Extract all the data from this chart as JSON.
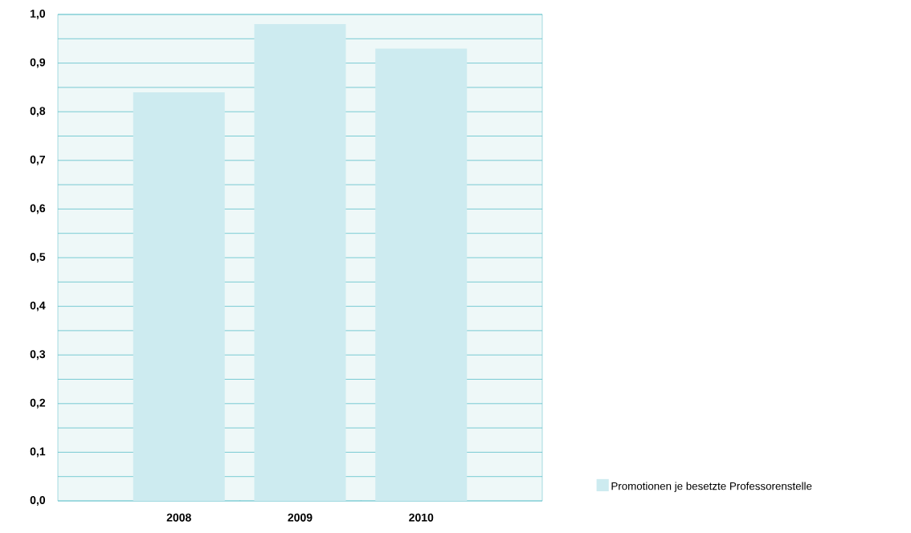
{
  "chart_data": {
    "type": "bar",
    "categories": [
      "2008",
      "2009",
      "2010"
    ],
    "series": [
      {
        "name": "Promotionen je besetzte Professorenstelle",
        "color": "#cdebf0",
        "values": [
          0.84,
          0.98,
          0.93
        ]
      }
    ],
    "ylim": [
      0,
      1.0
    ],
    "yticks": [
      {
        "value": 0,
        "label": "0,0"
      },
      {
        "value": 0.05,
        "label": null
      },
      {
        "value": 0.1,
        "label": "0,1"
      },
      {
        "value": 0.15,
        "label": null
      },
      {
        "value": 0.2,
        "label": "0,2"
      },
      {
        "value": 0.25,
        "label": null
      },
      {
        "value": 0.3,
        "label": "0,3"
      },
      {
        "value": 0.35,
        "label": null
      },
      {
        "value": 0.4,
        "label": "0,4"
      },
      {
        "value": 0.45,
        "label": null
      },
      {
        "value": 0.5,
        "label": "0,5"
      },
      {
        "value": 0.55,
        "label": null
      },
      {
        "value": 0.6,
        "label": "0,6"
      },
      {
        "value": 0.65,
        "label": null
      },
      {
        "value": 0.7,
        "label": "0,7"
      },
      {
        "value": 0.75,
        "label": null
      },
      {
        "value": 0.8,
        "label": "0,8"
      },
      {
        "value": 0.85,
        "label": null
      },
      {
        "value": 0.9,
        "label": "0,9"
      },
      {
        "value": 0.95,
        "label": null
      },
      {
        "value": 1.0,
        "label": "1,0"
      }
    ],
    "grid": "y",
    "legend": "bottom right"
  }
}
